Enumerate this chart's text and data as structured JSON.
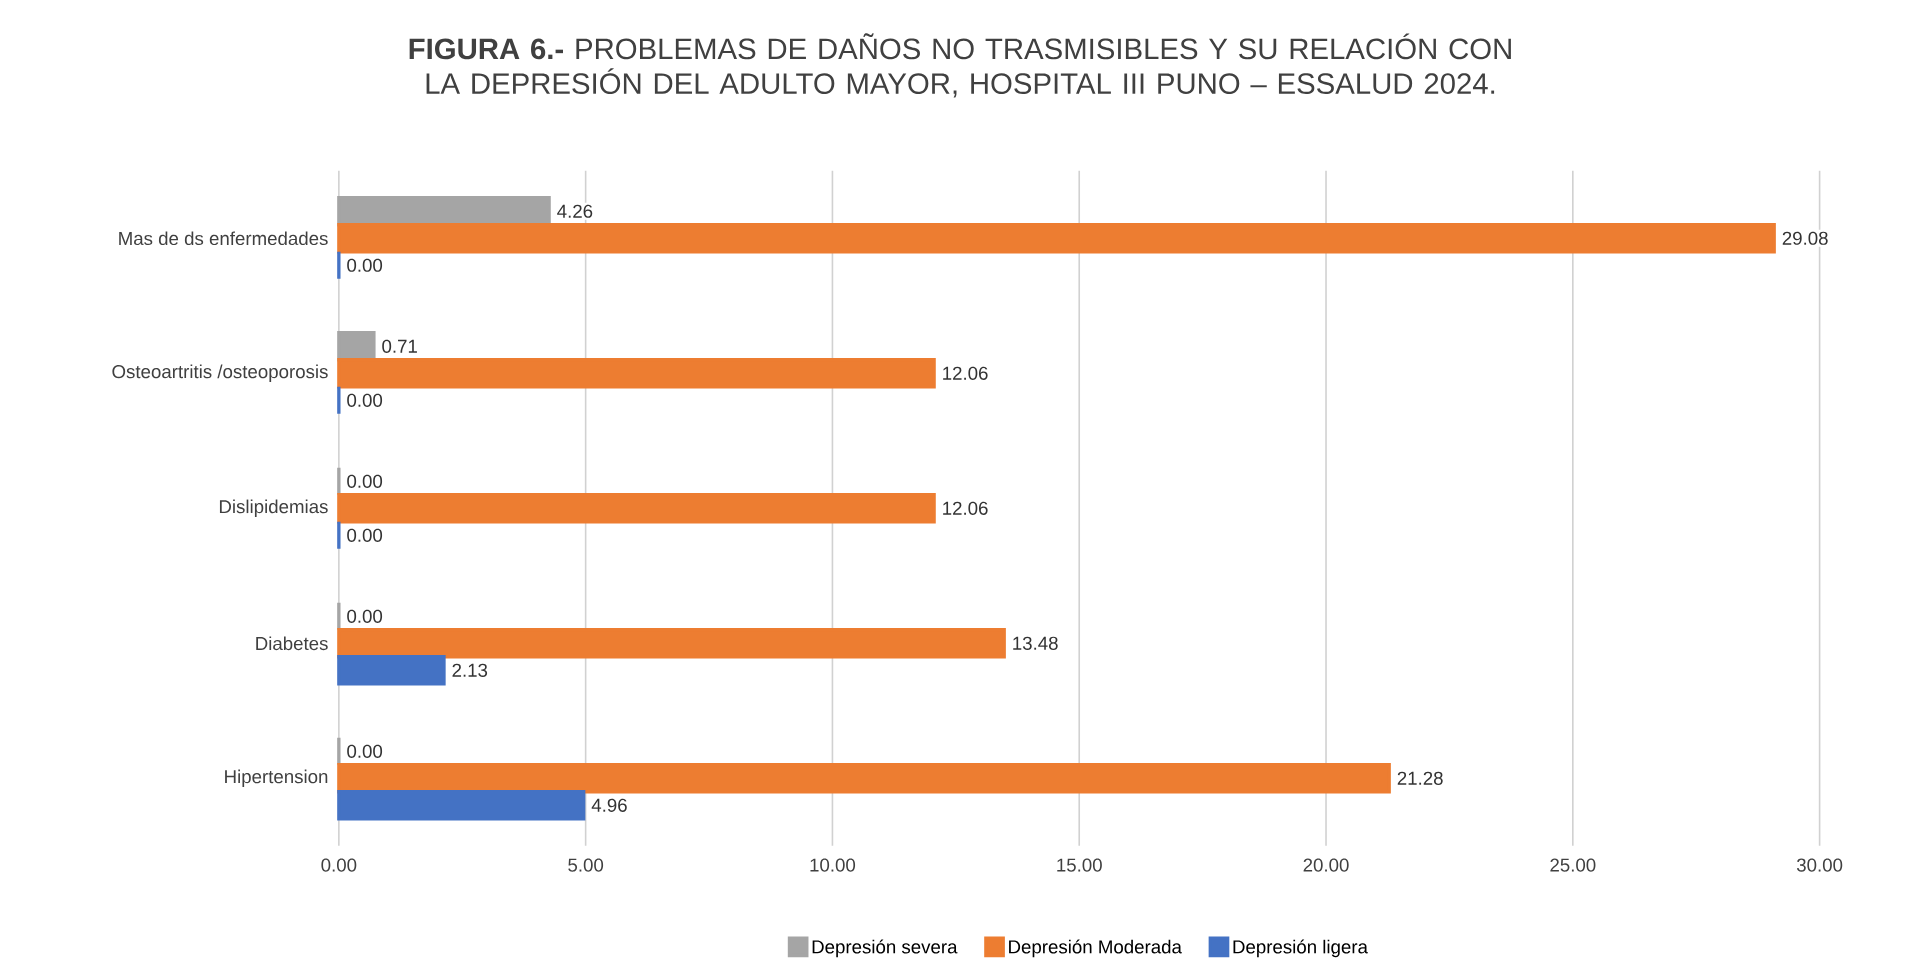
{
  "chart_data": {
    "type": "bar",
    "orientation": "horizontal",
    "title": "**FIGURA 6.-** PROBLEMAS DE DAÑOS NO TRASMISIBLES Y SU RELACIÓN CON LA DEPRESIÓN DEL ADULTO MAYOR, HOSPITAL III PUNO – ESSALUD 2024.",
    "categories": [
      "Mas de ds enfermedades",
      "Osteoartritis /osteoporosis",
      "Dislipidemias",
      "Diabetes",
      "Hipertension"
    ],
    "series": [
      {
        "name": "Depresión severa",
        "color": "#a5a5a5",
        "values": [
          4.26,
          0.71,
          0,
          0,
          0
        ],
        "value_labels": [
          "4.26",
          "0.71",
          "0.00",
          "0.00",
          "0.00"
        ]
      },
      {
        "name": "Depresión Moderada",
        "color": "#ed7d31",
        "values": [
          29.08,
          12.06,
          12.06,
          13.48,
          21.28
        ],
        "value_labels": [
          "29.08",
          "12.06",
          "12.06",
          "13.48",
          "21.28"
        ]
      },
      {
        "name": "Depresión ligera",
        "color": "#4472c4",
        "values": [
          0,
          0,
          0,
          2.13,
          4.96
        ],
        "value_labels": [
          "0.00",
          "0.00",
          "0.00",
          "2.13",
          "4.96"
        ]
      }
    ],
    "xlim": [
      0,
      30
    ],
    "xticks": [
      {
        "value": 0,
        "label": "0.00"
      },
      {
        "value": 5,
        "label": "5.00"
      },
      {
        "value": 10,
        "label": "10.00"
      },
      {
        "value": 15,
        "label": "15.00"
      },
      {
        "value": 20,
        "label": "20.00"
      },
      {
        "value": 25,
        "label": "25.00"
      },
      {
        "value": 30,
        "label": "30.00"
      }
    ],
    "grid": "x",
    "legend": "bottom"
  }
}
